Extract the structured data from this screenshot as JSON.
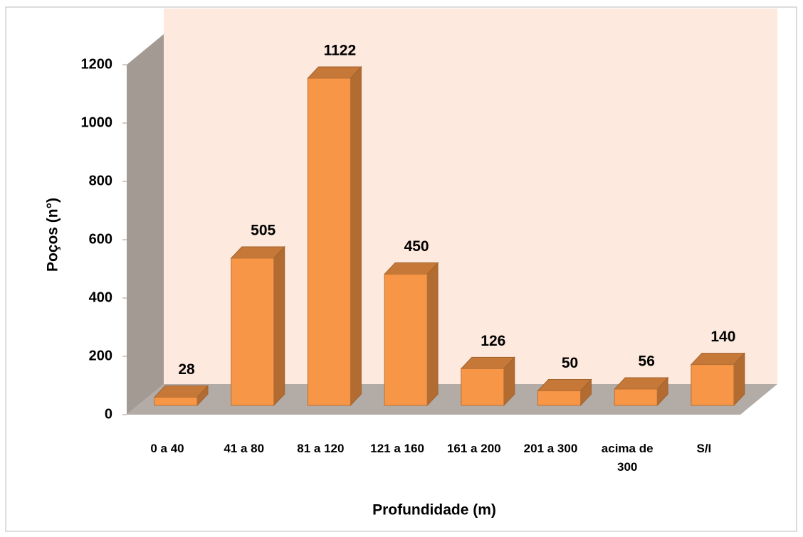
{
  "chart_data": {
    "type": "bar3d",
    "y_axis_label": "Poços (n°)",
    "x_axis_label": "Profundidade (m)",
    "categories": [
      "0 a 40",
      "41 a 80",
      "81 a 120",
      "121 a 160",
      "161 a 200",
      "201 a 300",
      "acima de 300",
      "S/I"
    ],
    "values": [
      28,
      505,
      1122,
      450,
      126,
      50,
      56,
      140
    ],
    "color": "#f79646",
    "ylim": [
      0,
      1200
    ],
    "yticks": [
      0,
      200,
      400,
      600,
      800,
      1000,
      1200
    ]
  }
}
